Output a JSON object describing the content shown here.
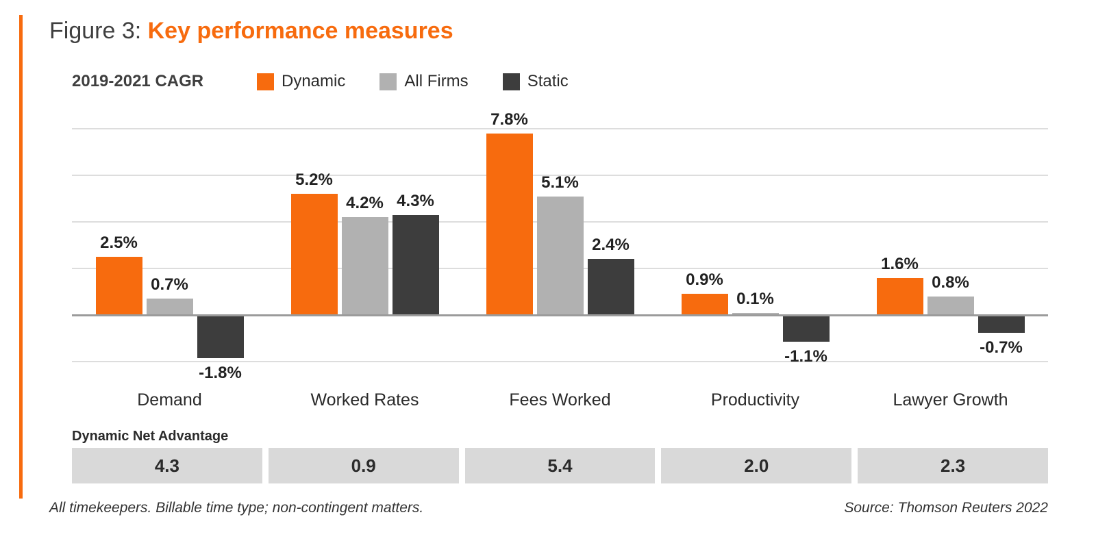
{
  "title": {
    "prefix": "Figure 3: ",
    "main": "Key performance measures"
  },
  "legend": {
    "period_label": "2019-2021 CAGR",
    "items": [
      {
        "label": "Dynamic",
        "color": "#f76b0e"
      },
      {
        "label": "All Firms",
        "color": "#b1b1b1"
      },
      {
        "label": "Static",
        "color": "#3d3d3d"
      }
    ]
  },
  "chart_data": {
    "type": "bar",
    "title": "2019-2021 CAGR",
    "categories": [
      "Demand",
      "Worked Rates",
      "Fees Worked",
      "Productivity",
      "Lawyer Growth"
    ],
    "series": [
      {
        "name": "Dynamic",
        "color": "#f76b0e",
        "values": [
          2.5,
          5.2,
          7.8,
          0.9,
          1.6
        ]
      },
      {
        "name": "All Firms",
        "color": "#b1b1b1",
        "values": [
          0.7,
          4.2,
          5.1,
          0.1,
          0.8
        ]
      },
      {
        "name": "Static",
        "color": "#3d3d3d",
        "values": [
          -1.8,
          4.3,
          2.4,
          -1.1,
          -0.7
        ]
      }
    ],
    "value_suffix": "%",
    "ylim": [
      -2,
      8
    ],
    "gridline_step": 2,
    "grid": true,
    "legend_position": "top",
    "net_advantage": {
      "label": "Dynamic Net Advantage",
      "values": [
        "4.3",
        "0.9",
        "5.4",
        "2.0",
        "2.3"
      ]
    }
  },
  "footer": {
    "note": "All timekeepers. Billable time type; non-contingent matters.",
    "source": "Source: Thomson Reuters 2022"
  },
  "colors": {
    "accent_orange": "#f76b0e",
    "bar_gray": "#b1b1b1",
    "bar_dark": "#3d3d3d",
    "gridline": "#dddddd",
    "zero_line": "#9b9b9b",
    "net_advantage_cell": "#d9d9d9"
  }
}
